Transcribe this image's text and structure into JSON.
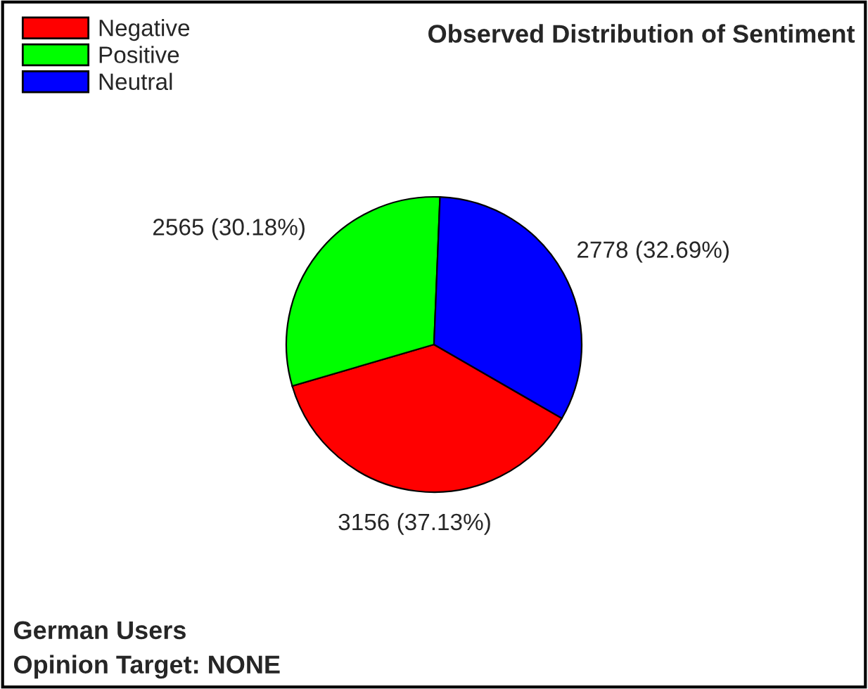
{
  "chart_data": {
    "type": "pie",
    "title": "Observed Distribution of Sentiment",
    "categories": [
      "Negative",
      "Positive",
      "Neutral"
    ],
    "values": [
      3156,
      2565,
      2778
    ],
    "colors": [
      "#ff0000",
      "#00ff00",
      "#0000ff"
    ],
    "value_labels": [
      "3156 (37.13%)",
      "2565 (30.18%)",
      "2778 (32.69%)"
    ],
    "legend": "top left",
    "annotations": [
      "German Users",
      "Opinion Target: NONE"
    ]
  }
}
